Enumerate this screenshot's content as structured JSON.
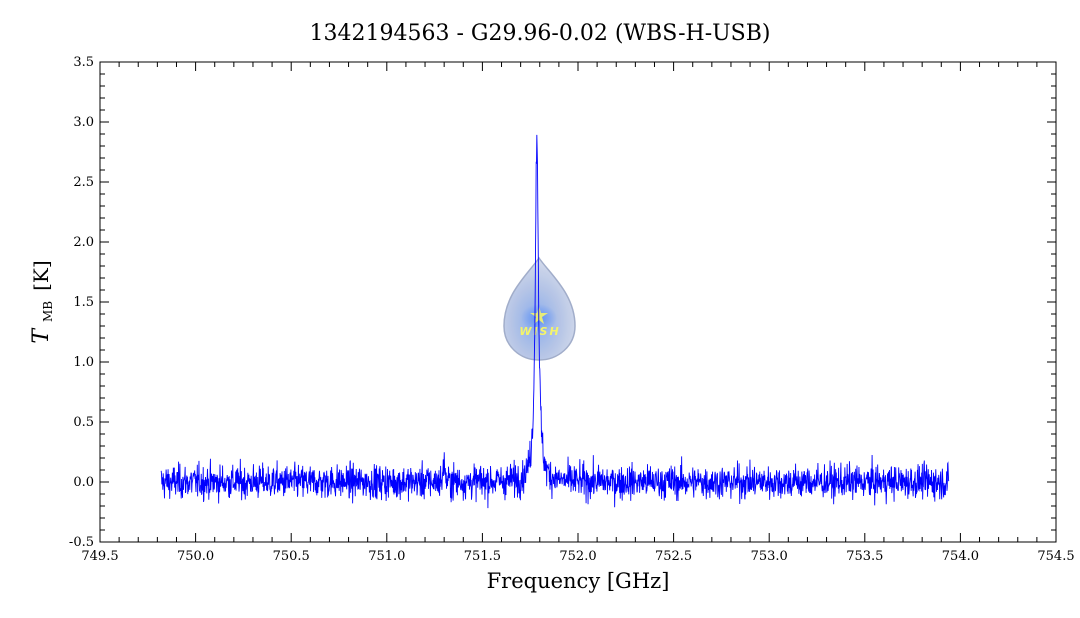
{
  "chart_data": {
    "type": "line",
    "title": "1342194563 - G29.96-0.02 (WBS-H-USB)",
    "xlabel": "Frequency [GHz]",
    "ylabel": {
      "symbol": "T",
      "subscript": "MB",
      "unit": "[K]"
    },
    "xlim": [
      749.5,
      754.5
    ],
    "ylim": [
      -0.5,
      3.5
    ],
    "x_ticks": [
      "749.5",
      "750.0",
      "750.5",
      "751.0",
      "751.5",
      "752.0",
      "752.5",
      "753.0",
      "753.5",
      "754.0",
      "754.5"
    ],
    "y_ticks": [
      "-0.5",
      "0.0",
      "0.5",
      "1.0",
      "1.5",
      "2.0",
      "2.5",
      "3.0",
      "3.5"
    ],
    "grid": false,
    "series": [
      {
        "color": "#0000ff",
        "freq_range": [
          749.82,
          753.94
        ],
        "noise_rms_K": 0.07,
        "lines": [
          {
            "center_GHz": 751.785,
            "peak_K": 2.9,
            "width_GHz": 0.01
          },
          {
            "center_GHz": 751.3,
            "peak_K": 0.25,
            "width_GHz": 0.003
          }
        ]
      }
    ]
  },
  "logo": {
    "text": "WISH"
  }
}
